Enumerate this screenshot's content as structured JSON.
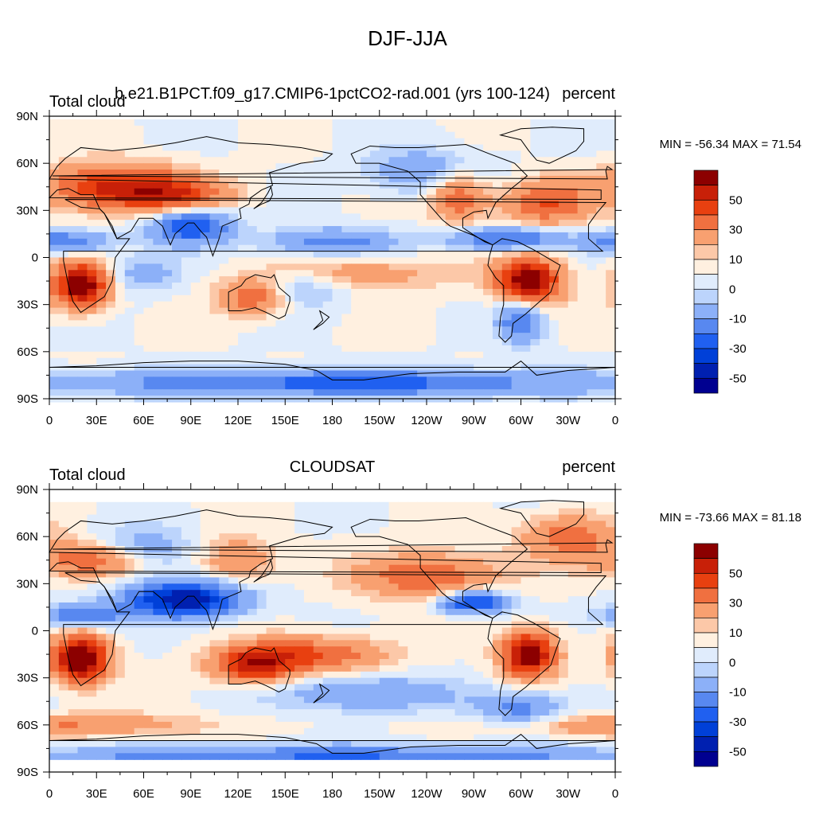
{
  "figure_title": "DJF-JJA",
  "panels": [
    {
      "left_title": "Total cloud",
      "center_title": "b.e21.B1PCT.f09_g17.CMIP6-1pctCO2-rad.001 (yrs 100-124)",
      "right_title": "percent",
      "stats": "MIN = -56.34 MAX =  71.54"
    },
    {
      "left_title": "Total cloud",
      "center_title": "CLOUDSAT",
      "right_title": "percent",
      "stats": "MIN = -73.66 MAX =  81.18"
    }
  ],
  "chart_data": [
    {
      "type": "heatmap",
      "variable": "Total cloud",
      "units": "percent",
      "season": "DJF-JJA",
      "min": -56.34,
      "max": 71.54,
      "x_ticks": [
        "0",
        "30E",
        "60E",
        "90E",
        "120E",
        "150E",
        "180",
        "150W",
        "120W",
        "90W",
        "60W",
        "30W",
        "0"
      ],
      "y_ticks": [
        "90N",
        "60N",
        "30N",
        "0",
        "30S",
        "60S",
        "90S"
      ],
      "colorbar_labels": [
        "50",
        "30",
        "10",
        "0",
        "-10",
        "-30",
        "-50"
      ]
    },
    {
      "type": "heatmap",
      "variable": "Total cloud",
      "units": "percent",
      "season": "DJF-JJA",
      "min": -73.66,
      "max": 81.18,
      "x_ticks": [
        "0",
        "30E",
        "60E",
        "90E",
        "120E",
        "150E",
        "180",
        "150W",
        "120W",
        "90W",
        "60W",
        "30W",
        "0"
      ],
      "y_ticks": [
        "90N",
        "60N",
        "30N",
        "0",
        "30S",
        "60S",
        "90S"
      ],
      "colorbar_labels": [
        "50",
        "30",
        "10",
        "0",
        "-10",
        "-30",
        "-50"
      ]
    }
  ],
  "colors": {
    "palette": [
      "#000090",
      "#0020b0",
      "#0040d8",
      "#2060f0",
      "#5888f0",
      "#8cb0f8",
      "#bcd4fc",
      "#e0ecfc",
      "#fff0e0",
      "#fcc8a8",
      "#f8a070",
      "#f07040",
      "#e84010",
      "#c82008",
      "#8c0000"
    ]
  }
}
